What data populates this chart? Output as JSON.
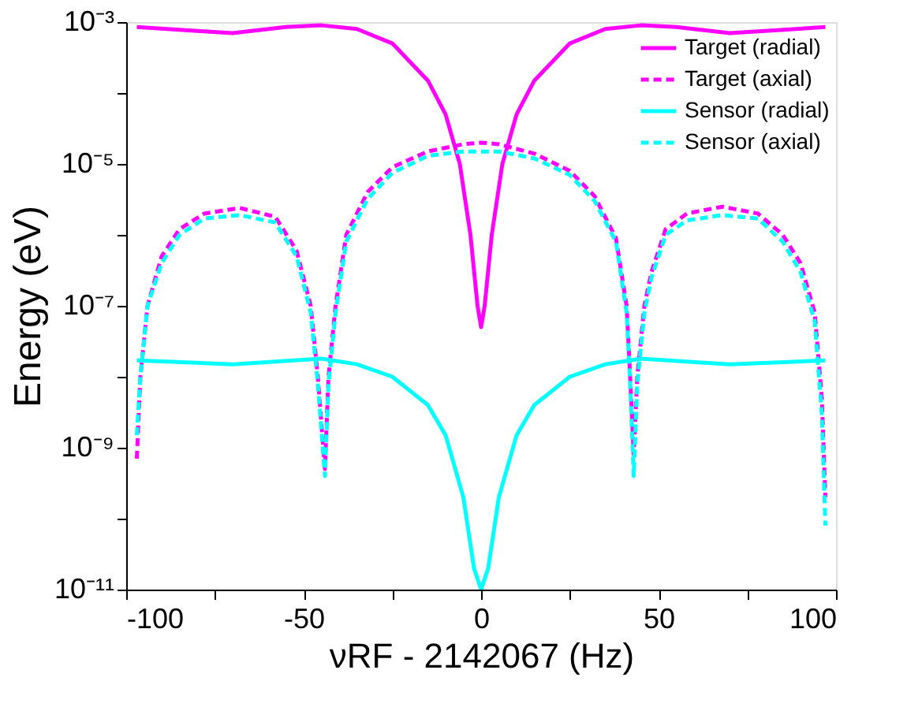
{
  "chart_data": {
    "type": "line",
    "xlabel": "νRF - 2142067 (Hz)",
    "ylabel": "Energy (eV)",
    "log": true,
    "grid": false,
    "legend": "top right",
    "marker": "none",
    "xlim": [
      -100,
      100
    ],
    "ylim": [
      1e-11,
      0.001
    ],
    "xticks": [
      -100,
      {
        "value": -75,
        "label": null
      },
      -50,
      {
        "value": -25,
        "label": null
      },
      0,
      {
        "value": 25,
        "label": null
      },
      50,
      {
        "value": 75,
        "label": null
      },
      100
    ],
    "yticks": [
      {
        "value": 1e-11,
        "label": "10⁻¹¹"
      },
      {
        "value": 1e-10,
        "label": null
      },
      {
        "value": 1e-09,
        "label": "10⁻⁹"
      },
      {
        "value": 1e-08,
        "label": null
      },
      {
        "value": 1e-07,
        "label": "10⁻⁷"
      },
      {
        "value": 1e-06,
        "label": null
      },
      {
        "value": 1e-05,
        "label": "10⁻⁵"
      },
      {
        "value": 0.0001,
        "label": null
      },
      {
        "value": 0.001,
        "label": "10⁻³"
      }
    ],
    "series": [
      {
        "name": "Target (radial)",
        "color": "#ff00ff",
        "line_style": "solid",
        "x": [
          -97,
          -80,
          -70,
          -55,
          -45,
          -35,
          -25,
          -15,
          -10,
          -6,
          -3,
          -1,
          0,
          1,
          3,
          6,
          10,
          15,
          25,
          35,
          45,
          55,
          70,
          80,
          97
        ],
        "values": [
          0.00085,
          0.00075,
          0.0007,
          0.00085,
          0.0009,
          0.0008,
          0.0005,
          0.00015,
          5e-05,
          1e-05,
          1e-06,
          1e-07,
          5e-08,
          1e-07,
          1e-06,
          1e-05,
          5e-05,
          0.00015,
          0.0005,
          0.0008,
          0.0009,
          0.00085,
          0.0007,
          0.00075,
          0.00085
        ]
      },
      {
        "name": "Target (axial)",
        "color": "#ff00ff",
        "line_style": "dashed",
        "x": [
          -97,
          -96,
          -94,
          -90,
          -85,
          -78,
          -68,
          -58,
          -52,
          -48,
          -46,
          -44,
          -43,
          -41,
          -38,
          -32,
          -25,
          -15,
          -5,
          0,
          5,
          15,
          25,
          32,
          38,
          41,
          42,
          43,
          44,
          46,
          48,
          52,
          58,
          68,
          78,
          85,
          90,
          94,
          96,
          97
        ],
        "values": [
          7e-10,
          1e-08,
          1e-07,
          5e-07,
          1.2e-06,
          2e-06,
          2.4e-06,
          1.8e-06,
          6e-07,
          1e-07,
          1e-08,
          5e-10,
          1e-08,
          1e-07,
          1e-06,
          4e-06,
          9e-06,
          1.5e-05,
          1.9e-05,
          2e-05,
          1.9e-05,
          1.4e-05,
          8e-06,
          3.5e-06,
          9e-07,
          1e-07,
          1e-08,
          8e-10,
          1e-08,
          1e-07,
          3e-07,
          1.2e-06,
          2e-06,
          2.5e-06,
          2e-06,
          1e-06,
          4e-07,
          8e-08,
          5e-09,
          2e-10
        ]
      },
      {
        "name": "Sensor (radial)",
        "color": "#00ffff",
        "line_style": "solid",
        "x": [
          -97,
          -70,
          -45,
          -35,
          -25,
          -15,
          -10,
          -5,
          -2,
          0,
          2,
          5,
          10,
          15,
          25,
          35,
          45,
          70,
          97
        ],
        "values": [
          1.7e-08,
          1.5e-08,
          1.8e-08,
          1.5e-08,
          1e-08,
          4e-09,
          1.5e-09,
          2e-10,
          2e-11,
          1e-11,
          2e-11,
          2e-10,
          1.5e-09,
          4e-09,
          1e-08,
          1.5e-08,
          1.8e-08,
          1.5e-08,
          1.7e-08
        ]
      },
      {
        "name": "Sensor (axial)",
        "color": "#00ffff",
        "line_style": "dashed",
        "x": [
          -97,
          -96,
          -94,
          -90,
          -85,
          -78,
          -68,
          -58,
          -52,
          -48,
          -46,
          -44,
          -43,
          -41,
          -38,
          -32,
          -25,
          -15,
          -5,
          0,
          5,
          15,
          25,
          32,
          38,
          41,
          42,
          43,
          44,
          46,
          48,
          52,
          58,
          68,
          78,
          85,
          90,
          94,
          96,
          97
        ],
        "values": [
          1.5e-09,
          1e-08,
          1e-07,
          4e-07,
          1e-06,
          1.7e-06,
          1.9e-06,
          1.5e-06,
          5e-07,
          8e-08,
          8e-09,
          4e-10,
          8e-09,
          8e-08,
          8e-07,
          3.2e-06,
          7.5e-06,
          1.3e-05,
          1.5e-05,
          1.5e-05,
          1.5e-05,
          1.2e-05,
          7e-06,
          3e-06,
          8e-07,
          8e-08,
          8e-09,
          4e-10,
          8e-09,
          8e-08,
          2.5e-07,
          1e-06,
          1.6e-06,
          1.9e-06,
          1.7e-06,
          8e-07,
          3e-07,
          6e-08,
          3e-09,
          8e-11
        ]
      }
    ]
  }
}
